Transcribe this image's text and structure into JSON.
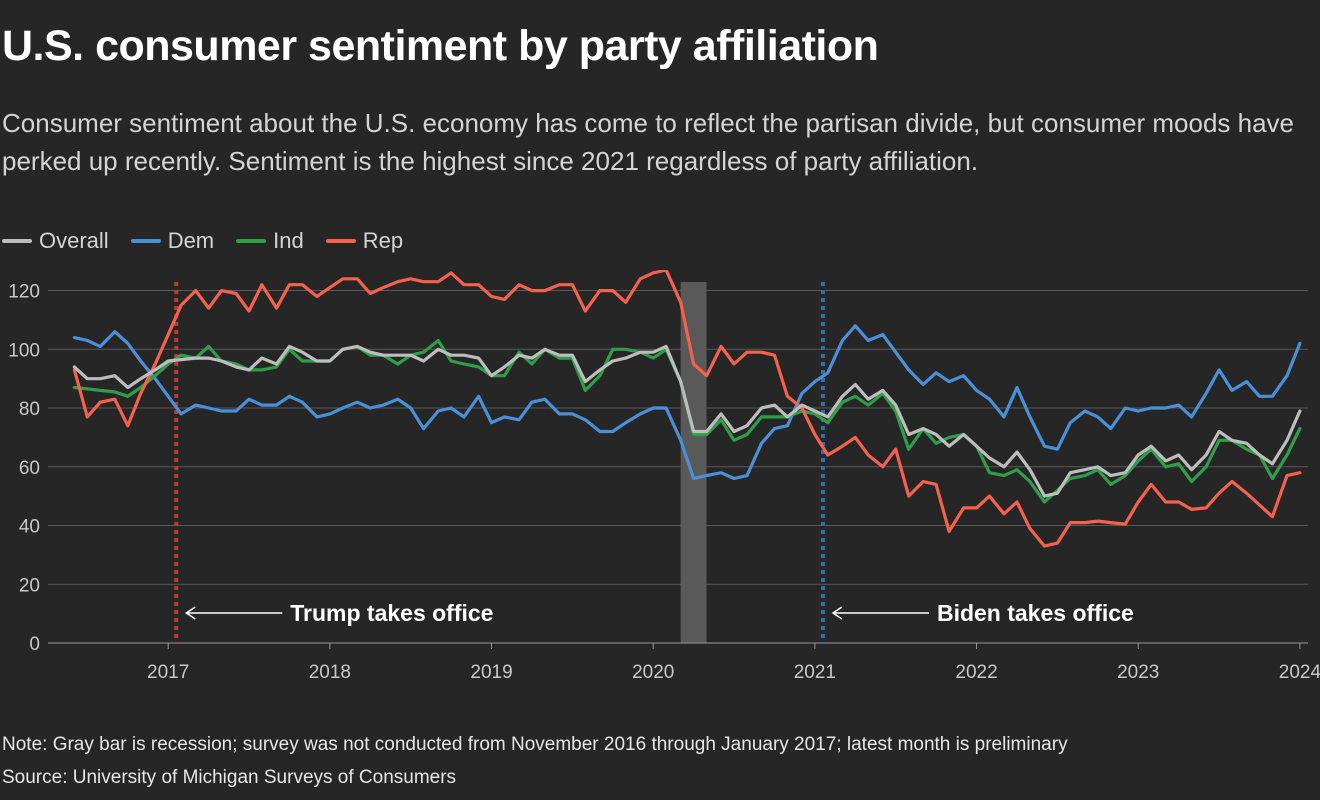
{
  "title": "U.S. consumer sentiment by party affiliation",
  "subtitle": "Consumer sentiment about the U.S. economy has come to reflect the partisan divide, but consumer moods have perked up recently. Sentiment is the highest since 2021 regardless of party affiliation.",
  "note": "Note: Gray bar is recession; survey was not conducted from November 2016 through January 2017; latest month is preliminary",
  "source": "Source: University of Michigan Surveys of Consumers",
  "colors": {
    "background": "#262626",
    "Overall": "#bdbdbd",
    "Dem": "#4a90d9",
    "Ind": "#2e9e48",
    "Rep": "#f4614d",
    "recession": "#595959",
    "trump_line": "#c0392b",
    "biden_line": "#2f6fb0",
    "grid": "#585858"
  },
  "chart_data": {
    "type": "line",
    "x_unit": "decimal year (monthly observations)",
    "x": [
      2016.42,
      2016.5,
      2016.58,
      2016.67,
      2016.75,
      2016.83,
      2016.92,
      2017.0,
      2017.08,
      2017.17,
      2017.25,
      2017.33,
      2017.42,
      2017.5,
      2017.58,
      2017.67,
      2017.75,
      2017.83,
      2017.92,
      2018.0,
      2018.08,
      2018.17,
      2018.25,
      2018.33,
      2018.42,
      2018.5,
      2018.58,
      2018.67,
      2018.75,
      2018.83,
      2018.92,
      2019.0,
      2019.08,
      2019.17,
      2019.25,
      2019.33,
      2019.42,
      2019.5,
      2019.58,
      2019.67,
      2019.75,
      2019.83,
      2019.92,
      2020.0,
      2020.08,
      2020.17,
      2020.25,
      2020.33,
      2020.42,
      2020.5,
      2020.58,
      2020.67,
      2020.75,
      2020.83,
      2020.92,
      2021.0,
      2021.08,
      2021.17,
      2021.25,
      2021.33,
      2021.42,
      2021.5,
      2021.58,
      2021.67,
      2021.75,
      2021.83,
      2021.92,
      2022.0,
      2022.08,
      2022.17,
      2022.25,
      2022.33,
      2022.42,
      2022.5,
      2022.58,
      2022.67,
      2022.75,
      2022.83,
      2022.92,
      2023.0,
      2023.08,
      2023.17,
      2023.25,
      2023.33,
      2023.42,
      2023.5,
      2023.58,
      2023.67,
      2023.75,
      2023.83,
      2023.92,
      2024.0
    ],
    "series": [
      {
        "name": "Overall",
        "values": [
          94,
          90,
          90,
          91,
          87,
          90,
          93,
          96,
          96.5,
          97,
          97,
          96,
          94,
          93,
          97,
          95,
          101,
          99,
          96,
          96,
          100,
          101,
          99,
          98,
          98,
          98,
          96,
          100,
          98,
          98,
          97,
          91,
          94,
          98,
          97,
          100,
          98,
          98,
          89,
          93,
          96,
          97,
          99,
          99,
          101,
          89,
          72,
          72,
          78,
          72,
          74,
          80,
          81,
          77,
          81,
          79,
          77,
          84,
          88,
          83,
          86,
          81,
          71,
          73,
          71,
          67,
          71,
          67,
          63,
          60,
          65,
          59,
          50,
          51,
          58,
          59,
          60,
          57,
          58,
          64,
          67,
          62,
          64,
          59,
          64,
          72,
          69,
          68,
          64,
          61,
          69,
          79
        ]
      },
      {
        "name": "Dem",
        "values": [
          104,
          103,
          101,
          106,
          102,
          96,
          90,
          84,
          78,
          81,
          80,
          79,
          79,
          83,
          81,
          81,
          84,
          82,
          77,
          78,
          80,
          82,
          80,
          81,
          83,
          80,
          73,
          79,
          80,
          77,
          84,
          75,
          77,
          76,
          82,
          83,
          78,
          78,
          76,
          72,
          72,
          75,
          78,
          80,
          80,
          69,
          56,
          57,
          58,
          56,
          57,
          68,
          73,
          74,
          85,
          89,
          92,
          103,
          108,
          103,
          105,
          99,
          93,
          88,
          92,
          89,
          91,
          86,
          83,
          77,
          87,
          77,
          67,
          66,
          75,
          79,
          77,
          73,
          80,
          79,
          80,
          80,
          81,
          77,
          85,
          93,
          86,
          89,
          84,
          84,
          91,
          102
        ]
      },
      {
        "name": "Ind",
        "values": [
          87,
          86.5,
          86,
          85.5,
          84,
          87,
          91,
          95,
          98,
          97,
          101,
          96,
          95,
          93,
          93,
          94,
          100,
          96,
          96,
          96,
          100,
          101,
          98,
          98,
          95,
          98,
          99,
          103,
          96,
          95,
          94,
          91,
          91,
          99,
          95,
          100,
          97,
          97,
          86,
          91,
          100,
          100,
          99,
          97,
          100,
          89,
          71,
          71,
          76,
          69,
          71,
          77,
          77,
          77,
          79,
          78,
          75,
          82,
          84,
          81,
          85,
          79,
          66,
          73,
          68,
          70,
          71,
          67,
          58,
          57,
          59,
          55,
          48,
          52,
          56,
          57,
          59,
          54,
          57,
          62,
          66,
          60,
          61,
          55,
          60,
          69,
          69,
          66,
          64,
          56,
          64,
          73
        ]
      },
      {
        "name": "Rep",
        "values": [
          93,
          77,
          82,
          83,
          74,
          85,
          95,
          105,
          115,
          120,
          114,
          120,
          119,
          113,
          122,
          114,
          122,
          122,
          118,
          121,
          124,
          124,
          119,
          121,
          123,
          124,
          123,
          123,
          126,
          122,
          122,
          118,
          117,
          122,
          120,
          120,
          122,
          122,
          113,
          120,
          120,
          116,
          124,
          126,
          127,
          116,
          95,
          91,
          101,
          95,
          99,
          99,
          98,
          84,
          80,
          71,
          64,
          67,
          70,
          64,
          60,
          66,
          50,
          55,
          54,
          38,
          46,
          46,
          50,
          44,
          48,
          39,
          33,
          34,
          41,
          41,
          41.5,
          41,
          40.5,
          48,
          54,
          48,
          48,
          45.5,
          46,
          51,
          55,
          51,
          47,
          43,
          57,
          58
        ]
      }
    ],
    "y_ticks": [
      "0",
      "20",
      "40",
      "60",
      "80",
      "100",
      "120"
    ],
    "ylim": [
      0,
      127
    ],
    "x_ticks": [
      "2017",
      "2018",
      "2019",
      "2020",
      "2021",
      "2022",
      "2023",
      "2024"
    ],
    "xlim": [
      2016.3,
      2024.05
    ],
    "grid": "horizontal",
    "legend_position": "top-left",
    "recession": {
      "start": 2020.17,
      "end": 2020.33
    },
    "annotations": [
      {
        "id": "trump",
        "label": "Trump takes office",
        "x": 2017.05
      },
      {
        "id": "biden",
        "label": "Biden takes office",
        "x": 2021.05
      }
    ]
  }
}
